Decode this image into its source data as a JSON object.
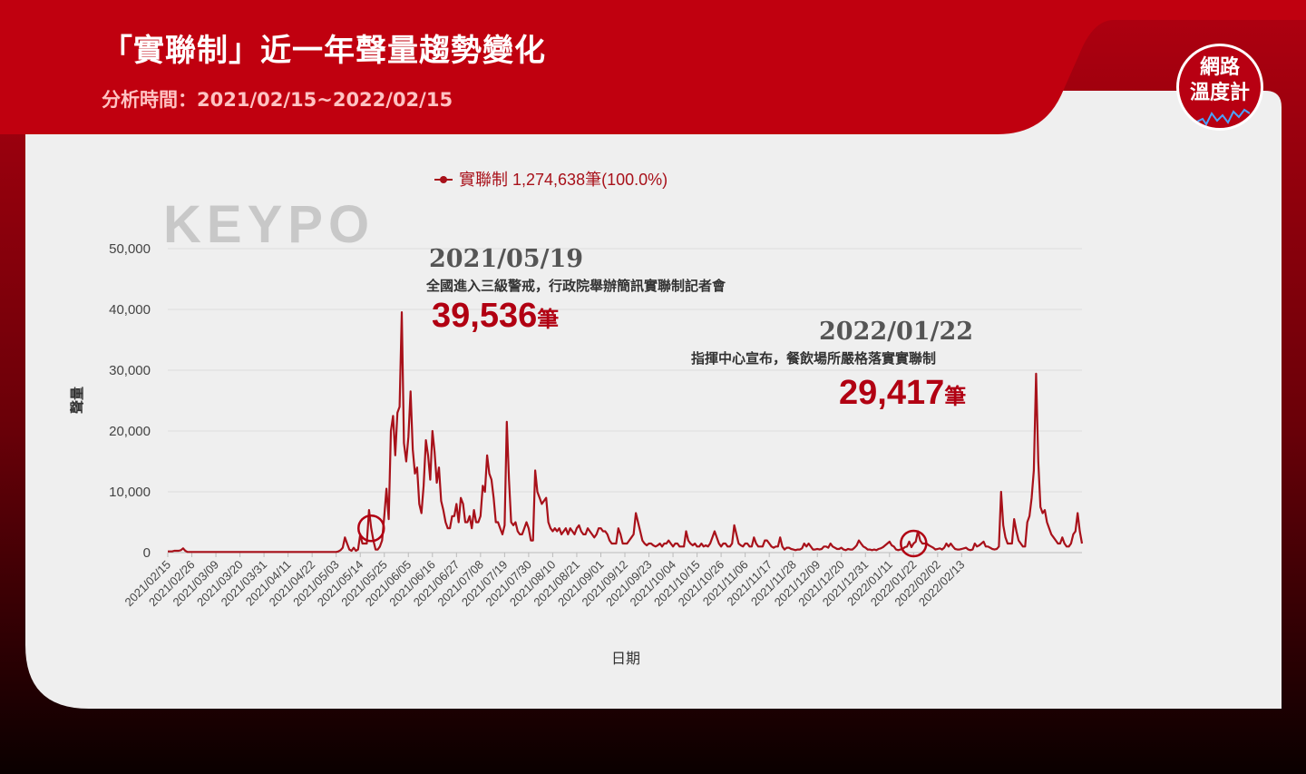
{
  "header": {
    "title": "「實聯制」近一年聲量趨勢變化",
    "subtitle": "分析時間：2021/02/15~2022/02/15"
  },
  "logo": {
    "line1": "網路",
    "line2": "溫度計"
  },
  "watermark": {
    "text": "KEYPO"
  },
  "colors": {
    "accent": "#b10012",
    "line": "#a8111a",
    "grid": "#dddddd"
  },
  "chart_data": {
    "type": "line",
    "legend": {
      "label": "實聯制 1,274,638筆(100.0%)",
      "placement": "top-center"
    },
    "xlabel": "日期",
    "ylabel": "聲量",
    "ylim": [
      0,
      50000
    ],
    "yticks": [
      "0",
      "10,000",
      "20,000",
      "30,000",
      "40,000",
      "50,000"
    ],
    "grid": true,
    "x_start": "2021/02/15",
    "x_tick_labels": [
      "2021/02/15",
      "2021/02/26",
      "2021/03/09",
      "2021/03/20",
      "2021/03/31",
      "2021/04/11",
      "2021/04/22",
      "2021/05/03",
      "2021/05/14",
      "2021/05/25",
      "2021/06/05",
      "2021/06/16",
      "2021/06/27",
      "2021/07/08",
      "2021/07/19",
      "2021/07/30",
      "2021/08/10",
      "2021/08/21",
      "2021/09/01",
      "2021/09/12",
      "2021/09/23",
      "2021/10/04",
      "2021/10/15",
      "2021/10/26",
      "2021/11/06",
      "2021/11/17",
      "2021/11/28",
      "2021/12/09",
      "2021/12/20",
      "2021/12/31",
      "2022/01/11",
      "2022/01/22",
      "2022/02/02",
      "2022/02/13"
    ],
    "series": [
      {
        "name": "實聯制",
        "values": [
          200,
          200,
          200,
          300,
          300,
          300,
          400,
          700,
          300,
          100,
          100,
          100,
          100,
          100,
          100,
          100,
          100,
          100,
          100,
          100,
          100,
          100,
          100,
          100,
          100,
          100,
          100,
          100,
          100,
          100,
          100,
          100,
          100,
          100,
          100,
          100,
          100,
          100,
          100,
          100,
          100,
          100,
          100,
          100,
          100,
          100,
          100,
          100,
          100,
          100,
          100,
          100,
          100,
          100,
          100,
          100,
          100,
          100,
          100,
          100,
          100,
          100,
          100,
          100,
          100,
          100,
          100,
          100,
          100,
          100,
          100,
          100,
          100,
          100,
          100,
          100,
          100,
          100,
          200,
          400,
          800,
          2500,
          1500,
          500,
          300,
          800,
          300,
          500,
          3000,
          1500,
          1500,
          1500,
          7000,
          4000,
          2000,
          500,
          500,
          1000,
          2000,
          6000,
          10500,
          5500,
          20000,
          22500,
          16000,
          23000,
          24000,
          39536,
          18000,
          15000,
          19000,
          26500,
          17000,
          13000,
          14000,
          8000,
          6500,
          11000,
          18500,
          16000,
          12000,
          20000,
          16500,
          11500,
          14000,
          8500,
          7000,
          5000,
          4000,
          4000,
          6000,
          6000,
          8000,
          5000,
          9000,
          8000,
          5000,
          5000,
          6000,
          4000,
          7000,
          5000,
          5000,
          6000,
          11000,
          10000,
          16000,
          13000,
          12000,
          9000,
          5000,
          5000,
          4000,
          3000,
          4500,
          21500,
          12000,
          5000,
          4500,
          5000,
          3500,
          3000,
          3000,
          4000,
          5000,
          4000,
          2000,
          2000,
          13500,
          10000,
          9000,
          8000,
          8500,
          9000,
          5000,
          4000,
          3500,
          4000,
          3500,
          4000,
          3000,
          3500,
          4000,
          3000,
          4000,
          3500,
          3000,
          4000,
          4500,
          3500,
          3000,
          3000,
          4000,
          3500,
          3000,
          2500,
          3000,
          4000,
          4000,
          3500,
          3500,
          3000,
          2000,
          1500,
          1500,
          1500,
          4000,
          3000,
          1500,
          1500,
          1500,
          2000,
          2500,
          3000,
          6500,
          5000,
          3500,
          2000,
          1500,
          1200,
          1500,
          1500,
          1200,
          1000,
          1200,
          1500,
          1000,
          1500,
          1500,
          2000,
          1500,
          1000,
          1500,
          1500,
          1000,
          1000,
          1000,
          3500,
          2000,
          1500,
          1200,
          1500,
          1000,
          1000,
          1500,
          1000,
          1200,
          1000,
          1500,
          2500,
          3500,
          2500,
          1500,
          1000,
          1500,
          1500,
          1000,
          1000,
          1500,
          4500,
          3000,
          1500,
          1200,
          1000,
          1500,
          1500,
          1000,
          1000,
          2500,
          1500,
          1000,
          1000,
          1000,
          2000,
          2000,
          1500,
          1000,
          800,
          1000,
          1000,
          2500,
          1000,
          500,
          800,
          800,
          600,
          500,
          400,
          500,
          500,
          700,
          1500,
          1000,
          1500,
          1000,
          500,
          500,
          600,
          500,
          600,
          1000,
          1000,
          800,
          1500,
          1000,
          800,
          600,
          600,
          800,
          500,
          400,
          600,
          500,
          500,
          800,
          1200,
          2000,
          1500,
          1000,
          800,
          500,
          500,
          400,
          500,
          400,
          600,
          700,
          900,
          1200,
          1500,
          1800,
          1200,
          1000,
          500,
          400,
          500,
          600,
          900,
          1000,
          1800,
          900,
          1500,
          1800,
          3500,
          2000,
          1500,
          1500,
          1500,
          1200,
          1000,
          800,
          500,
          600,
          700,
          500,
          800,
          1500,
          1000,
          1500,
          1000,
          600,
          500,
          500,
          600,
          700,
          800,
          500,
          400,
          500,
          1500,
          1000,
          1200,
          1500,
          1800,
          1000,
          1000,
          800,
          600,
          500,
          600,
          1000,
          10000,
          4500,
          2500,
          1500,
          1500,
          1500,
          5500,
          3500,
          2000,
          1500,
          1000,
          1000,
          5000,
          6000,
          9000,
          13500,
          29417,
          15000,
          7500,
          6500,
          7000,
          5000,
          4000,
          3000,
          2500,
          2000,
          1500,
          1500,
          2500,
          1500,
          1000,
          1000,
          1500,
          3000,
          3500,
          6500,
          3500,
          1500
        ]
      }
    ],
    "annotations": [
      {
        "date": "2021/05/19",
        "desc": "全國進入三級警戒，行政院舉辦簡訊實聯制記者會",
        "value": "39,536",
        "unit": "筆",
        "peak_index": 93
      },
      {
        "date": "2022/01/22",
        "desc": "指揮中心宣布，餐飲場所嚴格落實實聯制",
        "value": "29,417",
        "unit": "筆",
        "peak_index": 341
      }
    ]
  }
}
